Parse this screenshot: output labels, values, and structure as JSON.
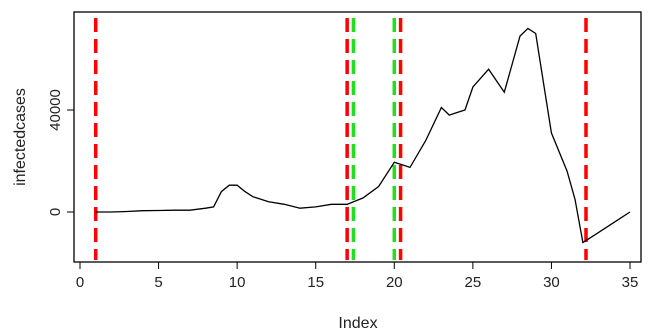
{
  "chart_data": {
    "type": "line",
    "title": "",
    "xlabel": "Index",
    "ylabel": "infectedcases",
    "xlim": [
      0,
      36
    ],
    "ylim": [
      -20000,
      77000
    ],
    "x_ticks": [
      0,
      5,
      10,
      15,
      20,
      25,
      30,
      35
    ],
    "y_ticks": [
      0,
      40000
    ],
    "y_tick_labels": [
      "0",
      "40000"
    ],
    "grid": false,
    "legend": "none",
    "series": [
      {
        "color": "#000000",
        "x": [
          1,
          2,
          3,
          4,
          5,
          6,
          7,
          8,
          8.5,
          9,
          9.5,
          10,
          10.5,
          11,
          12,
          13,
          14,
          15,
          16,
          17,
          18,
          19,
          20,
          20.5,
          21,
          22,
          23,
          23.5,
          24,
          24.5,
          25,
          26,
          27,
          28,
          28.5,
          29,
          30,
          31,
          31.5,
          32,
          33,
          34,
          35
        ],
        "values": [
          0,
          0,
          200,
          500,
          600,
          700,
          700,
          1500,
          2000,
          8000,
          10500,
          10500,
          8000,
          6000,
          4000,
          3000,
          1500,
          2000,
          3000,
          3000,
          5500,
          10000,
          19500,
          18500,
          17500,
          28000,
          41000,
          38000,
          39000,
          40000,
          49000,
          56000,
          47000,
          69000,
          72000,
          70000,
          31000,
          16000,
          5000,
          -12000,
          -8000,
          -4000,
          0
        ]
      }
    ],
    "vertical_lines": [
      {
        "x": 1,
        "color": "#ff0000"
      },
      {
        "x": 17,
        "color": "#ff0000"
      },
      {
        "x": 17.4,
        "color": "#22dd22"
      },
      {
        "x": 20,
        "color": "#22dd22"
      },
      {
        "x": 20.4,
        "color": "#ff0000"
      },
      {
        "x": 32.2,
        "color": "#ff0000"
      }
    ]
  }
}
